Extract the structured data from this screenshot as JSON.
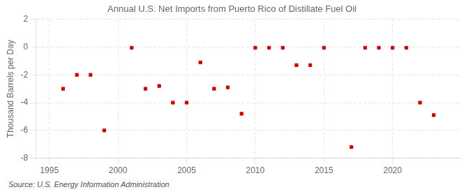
{
  "chart_data": {
    "type": "scatter",
    "title": "Annual U.S. Net Imports from Puerto Rico of Distillate Fuel Oil",
    "ylabel": "Thousand Barrels per Day",
    "annotations": [
      "Source: U.S. Energy Information Administration"
    ],
    "x": [
      1996,
      1997,
      1998,
      1999,
      2001,
      2002,
      2003,
      2004,
      2005,
      2006,
      2007,
      2008,
      2009,
      2010,
      2011,
      2012,
      2013,
      2014,
      2015,
      2017,
      2018,
      2019,
      2020,
      2021,
      2022,
      2023
    ],
    "values": [
      -3.0,
      -2.0,
      -2.0,
      -6.0,
      -0.05,
      -3.0,
      -2.8,
      -4.0,
      -4.0,
      -1.1,
      -3.0,
      -2.9,
      -4.8,
      -0.05,
      -0.05,
      -0.05,
      -1.3,
      -1.3,
      -0.05,
      -7.2,
      -0.05,
      -0.05,
      -0.05,
      -0.05,
      -4.0,
      -4.9
    ],
    "color": "#cc0000",
    "marker": "square",
    "xlim": [
      1994.0,
      2025.0
    ],
    "ylim": [
      -8,
      2
    ],
    "xticks": [
      1995,
      2000,
      2005,
      2010,
      2015,
      2020
    ],
    "yticks": [
      -8,
      -6,
      -4,
      -2,
      0,
      2
    ],
    "grid": true
  }
}
